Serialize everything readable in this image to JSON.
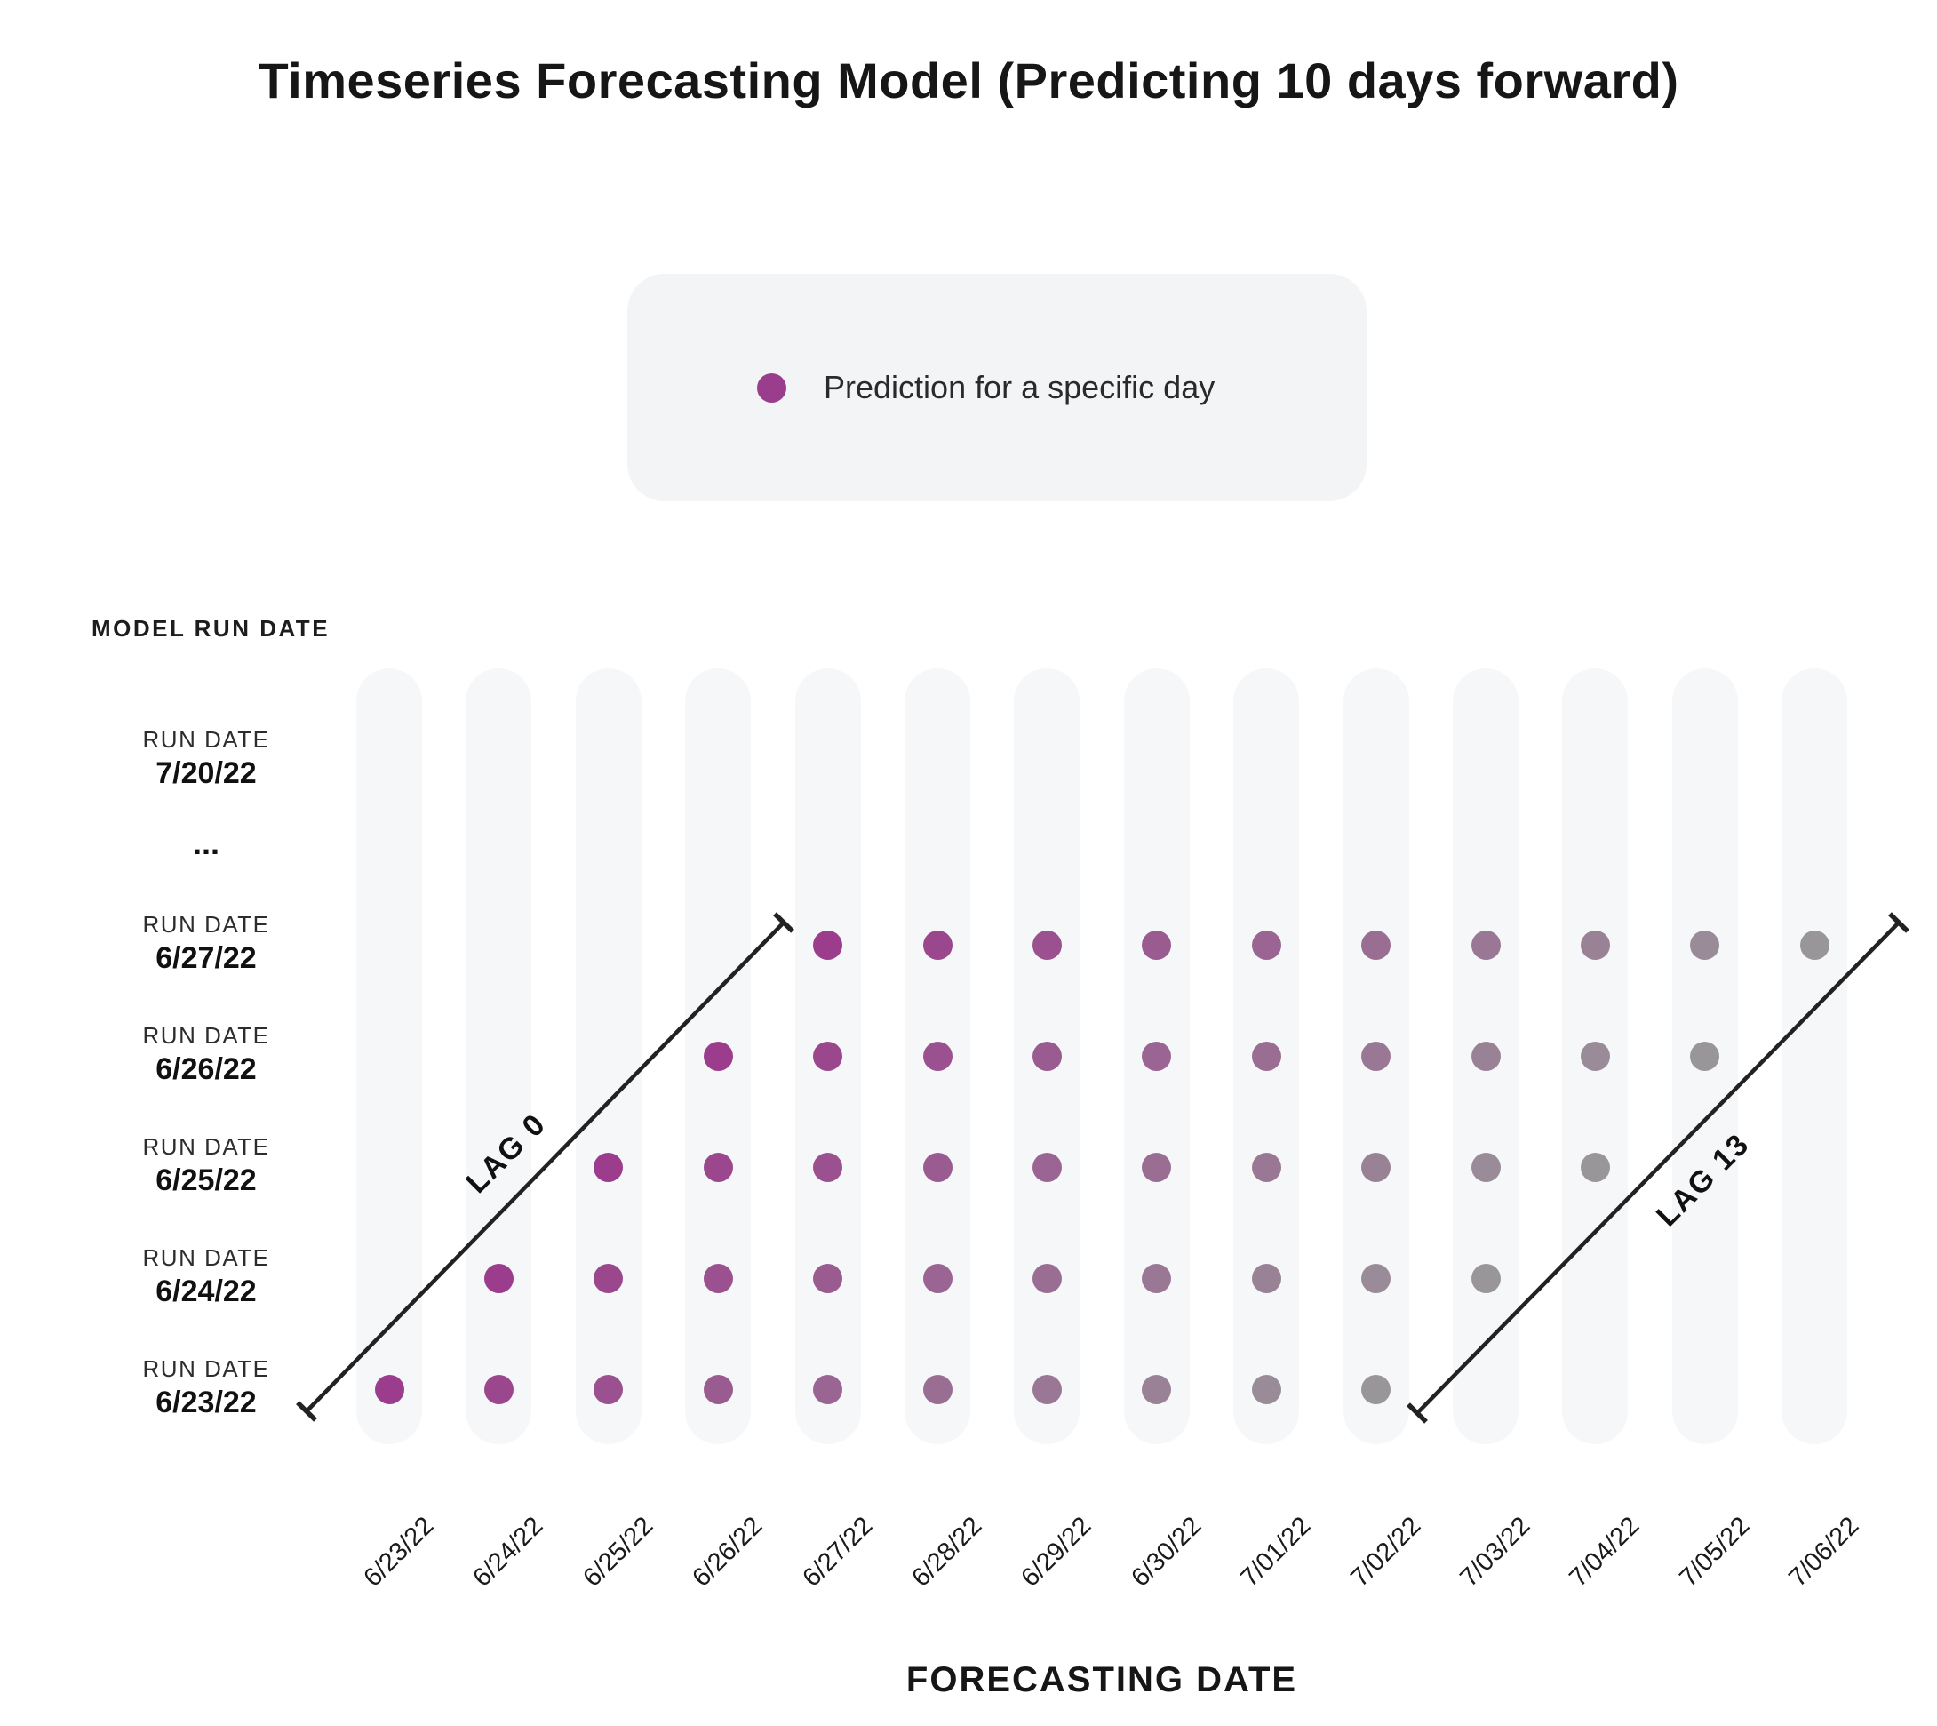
{
  "chart_data": {
    "type": "scatter",
    "title": "Timeseries Forecasting Model (Predicting 10 days forward)",
    "xlabel": "FORECASTING DATE",
    "ylabel": "MODEL RUN DATE",
    "x_categories": [
      "6/23/22",
      "6/24/22",
      "6/25/22",
      "6/26/22",
      "6/27/22",
      "6/28/22",
      "6/29/22",
      "6/30/22",
      "7/01/22",
      "7/02/22",
      "7/03/22",
      "7/04/22",
      "7/05/22",
      "7/06/22"
    ],
    "legend": [
      {
        "label": "Prediction for a specific day",
        "color": "#9A3D8C"
      }
    ],
    "rows": [
      {
        "label": "RUN DATE",
        "run_date": "7/20/22",
        "forecast_dates": []
      },
      {
        "run_date": "...",
        "is_ellipsis": true
      },
      {
        "label": "RUN DATE",
        "run_date": "6/27/22",
        "forecast_dates": [
          "6/27/22",
          "6/28/22",
          "6/29/22",
          "6/30/22",
          "7/01/22",
          "7/02/22",
          "7/03/22",
          "7/04/22",
          "7/05/22",
          "7/06/22"
        ]
      },
      {
        "label": "RUN DATE",
        "run_date": "6/26/22",
        "forecast_dates": [
          "6/26/22",
          "6/27/22",
          "6/28/22",
          "6/29/22",
          "6/30/22",
          "7/01/22",
          "7/02/22",
          "7/03/22",
          "7/04/22",
          "7/05/22"
        ]
      },
      {
        "label": "RUN DATE",
        "run_date": "6/25/22",
        "forecast_dates": [
          "6/25/22",
          "6/26/22",
          "6/27/22",
          "6/28/22",
          "6/29/22",
          "6/30/22",
          "7/01/22",
          "7/02/22",
          "7/03/22",
          "7/04/22"
        ]
      },
      {
        "label": "RUN DATE",
        "run_date": "6/24/22",
        "forecast_dates": [
          "6/24/22",
          "6/25/22",
          "6/26/22",
          "6/27/22",
          "6/28/22",
          "6/29/22",
          "6/30/22",
          "7/01/22",
          "7/02/22",
          "7/03/22"
        ]
      },
      {
        "label": "RUN DATE",
        "run_date": "6/23/22",
        "forecast_dates": [
          "6/23/22",
          "6/24/22",
          "6/25/22",
          "6/26/22",
          "6/27/22",
          "6/28/22",
          "6/29/22",
          "6/30/22",
          "7/01/22",
          "7/02/22"
        ]
      }
    ],
    "annotations": [
      {
        "label": "LAG 0"
      },
      {
        "label": "LAG 13"
      }
    ],
    "color_scale": {
      "dot_lag_start": "#9B3D8C",
      "dot_lag_end": "#999699",
      "track": "#F6F7F9",
      "legend_bg": "#F3F4F6",
      "annotation_line": "#222222"
    }
  }
}
